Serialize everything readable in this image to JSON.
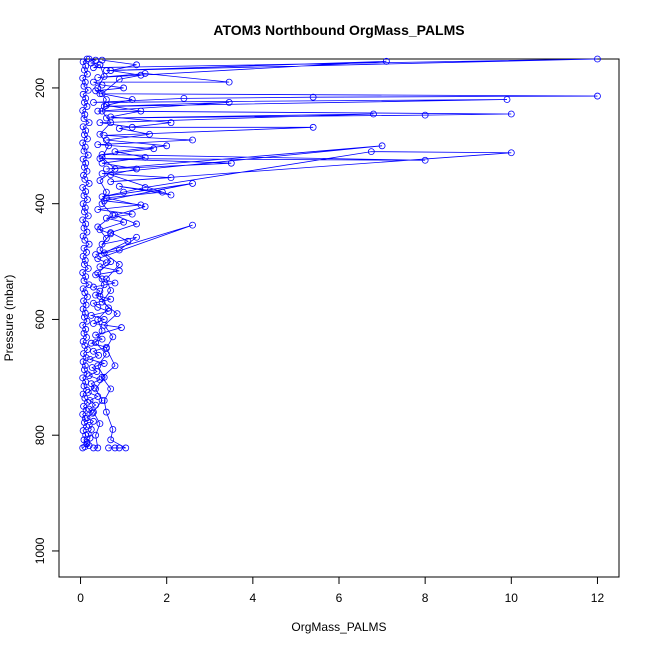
{
  "chart_data": {
    "type": "scatter",
    "title": "ATOM3 Northbound OrgMass_PALMS",
    "xlabel": "OrgMass_PALMS",
    "ylabel": "Pressure (mbar)",
    "xlim": [
      -0.5,
      12.5
    ],
    "ylim": [
      1045,
      150
    ],
    "y_reversed": true,
    "x_ticks": [
      0,
      2,
      4,
      6,
      8,
      10,
      12
    ],
    "y_ticks": [
      200,
      400,
      600,
      800,
      1000
    ],
    "x_tick_labels": [
      "0",
      "2",
      "4",
      "6",
      "8",
      "10",
      "12"
    ],
    "y_tick_labels": [
      "200",
      "400",
      "600",
      "800",
      "1000"
    ],
    "grid": false,
    "legend": "none",
    "color": "#0000ff",
    "style": "points-and-lines",
    "series": [
      {
        "values": [
          [
            0.1,
            820
          ],
          [
            0.2,
            818
          ],
          [
            0.15,
            812
          ],
          [
            0.22,
            805
          ],
          [
            0.18,
            798
          ],
          [
            0.25,
            790
          ],
          [
            0.2,
            783
          ],
          [
            0.3,
            776
          ],
          [
            0.15,
            770
          ],
          [
            0.28,
            762
          ],
          [
            0.2,
            755
          ],
          [
            0.35,
            748
          ],
          [
            0.22,
            740
          ],
          [
            0.4,
            733
          ],
          [
            0.18,
            726
          ],
          [
            0.32,
            718
          ],
          [
            0.25,
            711
          ],
          [
            0.45,
            704
          ],
          [
            0.2,
            697
          ],
          [
            0.38,
            690
          ],
          [
            0.27,
            683
          ],
          [
            0.55,
            676
          ],
          [
            0.22,
            669
          ],
          [
            0.42,
            662
          ],
          [
            0.3,
            655
          ],
          [
            0.6,
            648
          ],
          [
            0.25,
            641
          ],
          [
            0.5,
            634
          ],
          [
            0.35,
            627
          ],
          [
            0.95,
            614
          ],
          [
            0.3,
            607
          ],
          [
            0.55,
            600
          ],
          [
            0.25,
            593
          ],
          [
            0.65,
            586
          ],
          [
            0.4,
            579
          ],
          [
            0.3,
            572
          ],
          [
            0.7,
            565
          ],
          [
            0.35,
            558
          ],
          [
            0.45,
            551
          ],
          [
            0.3,
            544
          ],
          [
            0.8,
            537
          ],
          [
            0.5,
            530
          ],
          [
            0.35,
            523
          ],
          [
            0.9,
            516
          ],
          [
            0.45,
            509
          ],
          [
            0.6,
            502
          ],
          [
            0.4,
            495
          ],
          [
            2.6,
            437
          ],
          [
            0.35,
            488
          ],
          [
            0.9,
            480
          ],
          [
            1.3,
            458
          ],
          [
            0.5,
            470
          ],
          [
            0.7,
            452
          ],
          [
            0.45,
            445
          ],
          [
            1.0,
            432
          ],
          [
            0.6,
            425
          ],
          [
            1.2,
            418
          ],
          [
            0.4,
            410
          ],
          [
            1.4,
            402
          ],
          [
            0.55,
            395
          ],
          [
            2.6,
            365
          ],
          [
            0.5,
            388
          ],
          [
            1.0,
            380
          ],
          [
            1.5,
            372
          ],
          [
            6.75,
            310
          ],
          [
            10.0,
            312
          ],
          [
            0.7,
            362
          ],
          [
            2.1,
            355
          ],
          [
            0.5,
            348
          ],
          [
            7.0,
            300
          ],
          [
            0.6,
            340
          ],
          [
            3.5,
            330
          ],
          [
            0.45,
            322
          ],
          [
            8.0,
            325
          ],
          [
            0.5,
            315
          ],
          [
            1.7,
            305
          ],
          [
            0.4,
            298
          ],
          [
            2.6,
            290
          ],
          [
            0.55,
            282
          ],
          [
            5.4,
            268
          ],
          [
            1.2,
            268
          ],
          [
            0.45,
            260
          ],
          [
            6.8,
            245
          ],
          [
            0.6,
            252
          ],
          [
            8.0,
            247
          ],
          [
            10.0,
            245
          ],
          [
            0.4,
            240
          ],
          [
            3.45,
            225
          ],
          [
            0.55,
            232
          ],
          [
            9.9,
            220
          ],
          [
            0.3,
            225
          ],
          [
            2.4,
            218
          ],
          [
            5.4,
            216
          ],
          [
            12.0,
            214
          ],
          [
            0.45,
            210
          ],
          [
            0.35,
            205
          ],
          [
            1.0,
            200
          ],
          [
            0.5,
            195
          ],
          [
            0.3,
            190
          ],
          [
            3.45,
            190
          ],
          [
            1.5,
            175
          ],
          [
            0.4,
            182
          ],
          [
            7.1,
            154
          ],
          [
            0.6,
            170
          ],
          [
            12.0,
            150
          ],
          [
            0.3,
            165
          ],
          [
            0.45,
            160
          ],
          [
            0.25,
            157
          ],
          [
            0.35,
            152
          ],
          [
            0.2,
            150
          ]
        ]
      },
      {
        "values": [
          [
            0.05,
            822
          ],
          [
            0.15,
            815
          ],
          [
            0.08,
            808
          ],
          [
            0.12,
            800
          ],
          [
            0.06,
            792
          ],
          [
            0.14,
            785
          ],
          [
            0.09,
            778
          ],
          [
            0.11,
            771
          ],
          [
            0.05,
            764
          ],
          [
            0.13,
            757
          ],
          [
            0.07,
            750
          ],
          [
            0.16,
            743
          ],
          [
            0.1,
            736
          ],
          [
            0.06,
            729
          ],
          [
            0.14,
            722
          ],
          [
            0.08,
            715
          ],
          [
            0.12,
            708
          ],
          [
            0.05,
            701
          ],
          [
            0.15,
            694
          ],
          [
            0.09,
            687
          ],
          [
            0.11,
            680
          ],
          [
            0.06,
            673
          ],
          [
            0.13,
            666
          ],
          [
            0.07,
            659
          ],
          [
            0.16,
            652
          ],
          [
            0.1,
            645
          ],
          [
            0.06,
            638
          ],
          [
            0.14,
            631
          ],
          [
            0.08,
            624
          ],
          [
            0.12,
            617
          ],
          [
            0.05,
            610
          ],
          [
            0.15,
            603
          ],
          [
            0.09,
            596
          ],
          [
            0.11,
            589
          ],
          [
            0.06,
            582
          ],
          [
            0.13,
            575
          ],
          [
            0.07,
            568
          ],
          [
            0.16,
            561
          ],
          [
            0.1,
            554
          ],
          [
            0.06,
            547
          ],
          [
            0.2,
            540
          ],
          [
            0.08,
            533
          ],
          [
            0.12,
            526
          ],
          [
            0.05,
            519
          ],
          [
            0.18,
            512
          ],
          [
            0.09,
            505
          ],
          [
            0.11,
            498
          ],
          [
            0.06,
            491
          ],
          [
            0.14,
            484
          ],
          [
            0.08,
            477
          ],
          [
            0.2,
            470
          ],
          [
            0.1,
            463
          ],
          [
            0.06,
            456
          ],
          [
            0.15,
            449
          ],
          [
            0.08,
            442
          ],
          [
            0.12,
            435
          ],
          [
            0.05,
            428
          ],
          [
            0.18,
            421
          ],
          [
            0.09,
            414
          ],
          [
            0.11,
            407
          ],
          [
            0.06,
            400
          ],
          [
            0.16,
            393
          ],
          [
            0.08,
            386
          ],
          [
            0.12,
            379
          ],
          [
            0.05,
            372
          ],
          [
            0.2,
            365
          ],
          [
            0.1,
            358
          ],
          [
            0.07,
            351
          ],
          [
            0.15,
            344
          ],
          [
            0.09,
            337
          ],
          [
            0.12,
            330
          ],
          [
            0.06,
            323
          ],
          [
            0.18,
            316
          ],
          [
            0.08,
            309
          ],
          [
            0.11,
            302
          ],
          [
            0.05,
            295
          ],
          [
            0.16,
            288
          ],
          [
            0.09,
            281
          ],
          [
            0.12,
            274
          ],
          [
            0.06,
            267
          ],
          [
            0.2,
            260
          ],
          [
            0.08,
            253
          ],
          [
            0.1,
            246
          ],
          [
            0.05,
            239
          ],
          [
            0.15,
            232
          ],
          [
            0.09,
            225
          ],
          [
            0.12,
            218
          ],
          [
            0.06,
            211
          ],
          [
            0.18,
            204
          ],
          [
            0.08,
            197
          ],
          [
            0.11,
            190
          ],
          [
            0.05,
            183
          ],
          [
            0.16,
            176
          ],
          [
            0.09,
            169
          ],
          [
            0.12,
            162
          ],
          [
            0.06,
            155
          ],
          [
            0.15,
            150
          ]
        ]
      },
      {
        "values": [
          [
            0.65,
            822
          ],
          [
            0.8,
            822
          ],
          [
            0.9,
            822
          ],
          [
            1.05,
            822
          ],
          [
            0.7,
            808
          ],
          [
            0.75,
            790
          ],
          [
            0.6,
            760
          ],
          [
            0.55,
            740
          ],
          [
            0.7,
            720
          ],
          [
            0.5,
            700
          ],
          [
            0.8,
            680
          ],
          [
            0.6,
            650
          ],
          [
            0.75,
            630
          ],
          [
            0.55,
            610
          ],
          [
            0.85,
            590
          ],
          [
            0.5,
            570
          ],
          [
            0.7,
            550
          ],
          [
            0.6,
            530
          ],
          [
            0.9,
            505
          ],
          [
            0.55,
            485
          ],
          [
            1.1,
            465
          ],
          [
            0.7,
            450
          ],
          [
            1.3,
            435
          ],
          [
            0.8,
            420
          ],
          [
            1.5,
            405
          ],
          [
            0.6,
            390
          ],
          [
            1.9,
            380
          ],
          [
            0.9,
            370
          ],
          [
            2.1,
            385
          ],
          [
            0.7,
            350
          ],
          [
            1.3,
            340
          ],
          [
            0.5,
            330
          ],
          [
            1.5,
            320
          ],
          [
            0.8,
            310
          ],
          [
            2.0,
            300
          ],
          [
            0.6,
            290
          ],
          [
            1.6,
            280
          ],
          [
            0.9,
            270
          ],
          [
            2.1,
            260
          ],
          [
            0.7,
            250
          ],
          [
            1.4,
            240
          ],
          [
            0.6,
            230
          ],
          [
            1.2,
            220
          ],
          [
            0.5,
            210
          ],
          [
            0.9,
            185
          ],
          [
            1.4,
            178
          ],
          [
            0.7,
            170
          ],
          [
            1.3,
            160
          ],
          [
            0.5,
            152
          ]
        ]
      },
      {
        "values": [
          [
            0.3,
            822
          ],
          [
            0.4,
            822
          ],
          [
            0.35,
            800
          ],
          [
            0.45,
            780
          ],
          [
            0.3,
            760
          ],
          [
            0.5,
            740
          ],
          [
            0.35,
            720
          ],
          [
            0.55,
            700
          ],
          [
            0.4,
            680
          ],
          [
            0.6,
            660
          ],
          [
            0.35,
            640
          ],
          [
            0.5,
            620
          ],
          [
            0.4,
            600
          ],
          [
            0.65,
            580
          ],
          [
            0.45,
            560
          ],
          [
            0.55,
            540
          ],
          [
            0.4,
            520
          ],
          [
            0.7,
            500
          ],
          [
            0.45,
            480
          ],
          [
            0.6,
            460
          ],
          [
            0.4,
            440
          ],
          [
            0.75,
            420
          ],
          [
            0.5,
            400
          ],
          [
            0.6,
            380
          ],
          [
            0.45,
            360
          ],
          [
            0.8,
            340
          ],
          [
            0.5,
            320
          ],
          [
            0.65,
            300
          ],
          [
            0.45,
            280
          ],
          [
            0.7,
            260
          ],
          [
            0.5,
            240
          ],
          [
            0.6,
            220
          ],
          [
            0.4,
            200
          ],
          [
            0.55,
            180
          ],
          [
            0.45,
            160
          ]
        ]
      }
    ]
  }
}
